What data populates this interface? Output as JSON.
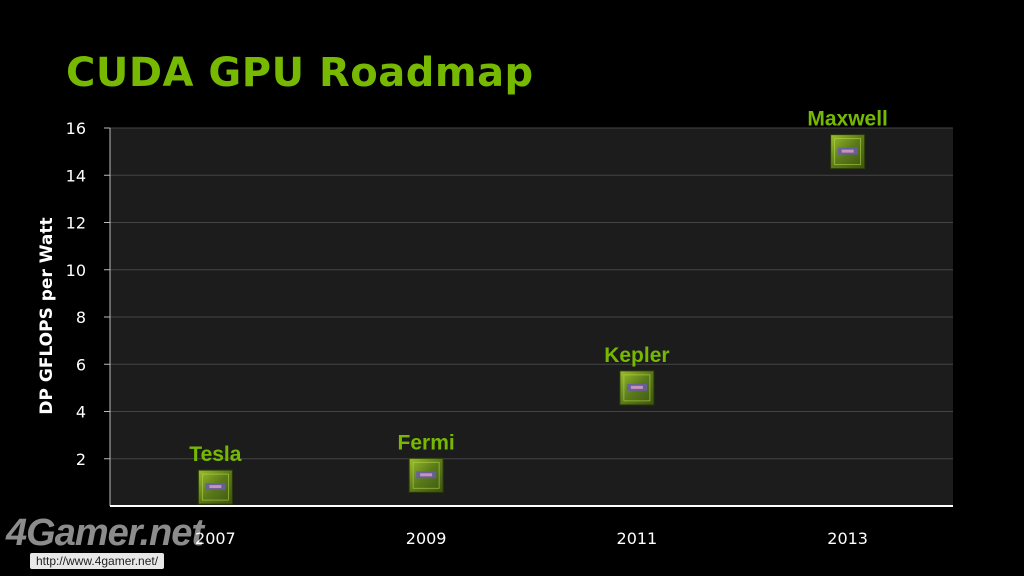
{
  "title": "CUDA GPU Roadmap",
  "colors": {
    "accent": "#76b900",
    "plot_bg": "#1c1c1c",
    "grid": "#444444",
    "text": "#ffffff"
  },
  "chart_data": {
    "type": "scatter",
    "ylabel": "DP GFLOPS per Watt",
    "xlabel": "",
    "categories": [
      "2007",
      "2009",
      "2011",
      "2013"
    ],
    "ylim": [
      0,
      16
    ],
    "yticks": [
      2,
      4,
      6,
      8,
      10,
      12,
      14,
      16
    ],
    "grid": true,
    "points": [
      {
        "label": "Tesla",
        "x": "2007",
        "y": 0.8
      },
      {
        "label": "Fermi",
        "x": "2009",
        "y": 1.3
      },
      {
        "label": "Kepler",
        "x": "2011",
        "y": 5.0
      },
      {
        "label": "Maxwell",
        "x": "2013",
        "y": 15.0
      }
    ],
    "marker_icon": "gpu-chip-icon"
  },
  "watermark": {
    "brand": "4Gamer.net",
    "url": "http://www.4gamer.net/"
  }
}
